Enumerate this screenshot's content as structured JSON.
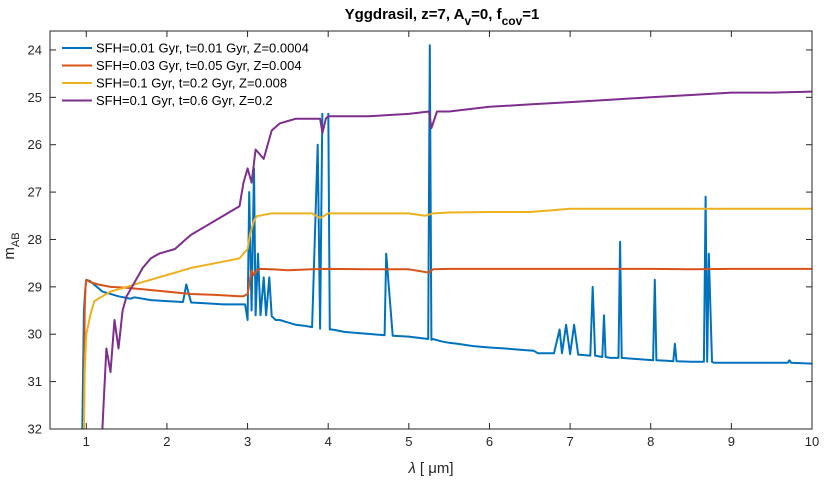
{
  "chart_data": {
    "type": "line",
    "title_parts": {
      "main": "Yggdrasil, z=7, A",
      "sub_v": "v",
      "mid": "=0, f",
      "sub_cov": "cov",
      "end": "=1"
    },
    "xlabel_parts": {
      "lambda": "λ",
      "unit": "[ μm]"
    },
    "ylabel_parts": {
      "main": "m",
      "sub": "AB"
    },
    "xlim": [
      0.55,
      10
    ],
    "ylim": [
      32,
      23.6
    ],
    "y_reversed": true,
    "x_ticks": [
      "1",
      "2",
      "3",
      "4",
      "5",
      "6",
      "7",
      "8",
      "9",
      "10"
    ],
    "y_ticks": [
      "24",
      "25",
      "26",
      "27",
      "28",
      "29",
      "30",
      "31",
      "32"
    ],
    "legend_location": "top-left",
    "series": [
      {
        "name": "SFH=0.01 Gyr, t=0.01 Gyr, Z=0.0004",
        "color": "#0072BD",
        "x": [
          0.95,
          0.96,
          0.97,
          0.99,
          1.0,
          1.05,
          1.2,
          1.4,
          1.55,
          1.6,
          1.8,
          2.0,
          2.2,
          2.24,
          2.3,
          2.5,
          2.7,
          2.9,
          2.97,
          3.0,
          3.02,
          3.05,
          3.08,
          3.1,
          3.13,
          3.16,
          3.2,
          3.23,
          3.27,
          3.3,
          3.35,
          3.4,
          3.5,
          3.6,
          3.7,
          3.8,
          3.87,
          3.9,
          3.93,
          4.0,
          4.02,
          4.05,
          4.2,
          4.4,
          4.7,
          4.72,
          4.8,
          5.0,
          5.24,
          5.26,
          5.28,
          5.3,
          5.4,
          5.5,
          5.6,
          5.8,
          6.0,
          6.2,
          6.4,
          6.55,
          6.6,
          6.8,
          6.87,
          6.9,
          6.95,
          7.0,
          7.05,
          7.1,
          7.25,
          7.28,
          7.31,
          7.4,
          7.42,
          7.44,
          7.5,
          7.6,
          7.62,
          7.64,
          7.8,
          8.03,
          8.05,
          8.07,
          8.2,
          8.28,
          8.3,
          8.32,
          8.5,
          8.66,
          8.68,
          8.7,
          8.72,
          8.76,
          8.78,
          8.8,
          9.0,
          9.3,
          9.5,
          9.7,
          9.72,
          9.74,
          10.0
        ],
        "y": [
          32.0,
          30.8,
          29.5,
          29.0,
          28.85,
          28.88,
          29.1,
          29.2,
          29.25,
          29.22,
          29.28,
          29.3,
          29.32,
          28.95,
          29.33,
          29.35,
          29.37,
          29.37,
          29.37,
          29.7,
          27.0,
          29.5,
          26.5,
          29.6,
          28.3,
          29.6,
          28.8,
          29.6,
          28.8,
          29.62,
          29.7,
          29.7,
          29.75,
          29.8,
          29.82,
          29.85,
          26.0,
          29.88,
          25.0,
          25.0,
          29.9,
          29.9,
          29.95,
          29.98,
          30.02,
          28.3,
          30.03,
          30.05,
          30.1,
          23.9,
          30.12,
          30.1,
          30.15,
          30.18,
          30.2,
          30.25,
          30.28,
          30.3,
          30.33,
          30.35,
          30.4,
          30.4,
          29.9,
          30.4,
          29.8,
          30.42,
          29.8,
          30.43,
          30.45,
          29.0,
          30.45,
          30.48,
          29.6,
          30.48,
          30.5,
          30.5,
          28.05,
          30.5,
          30.52,
          30.55,
          28.85,
          30.55,
          30.56,
          30.57,
          30.2,
          30.57,
          30.58,
          30.58,
          27.1,
          30.58,
          28.3,
          30.58,
          30.6,
          30.6,
          30.6,
          30.6,
          30.6,
          30.6,
          30.55,
          30.6,
          30.62
        ]
      },
      {
        "name": "SFH=0.03 Gyr, t=0.05 Gyr, Z=0.004",
        "color": "#D95319",
        "x": [
          0.97,
          0.98,
          0.99,
          1.0,
          1.05,
          1.15,
          1.3,
          1.5,
          1.7,
          2.0,
          2.3,
          2.6,
          2.9,
          2.95,
          3.0,
          3.05,
          3.08,
          3.12,
          3.15,
          3.3,
          3.5,
          3.8,
          4.0,
          4.5,
          5.0,
          5.25,
          5.3,
          5.5,
          6.0,
          6.5,
          7.0,
          7.5,
          8.0,
          8.5,
          9.0,
          9.5,
          10.0
        ],
        "y": [
          32.0,
          29.5,
          29.0,
          28.85,
          28.9,
          28.95,
          29.0,
          29.02,
          29.05,
          29.1,
          29.15,
          29.17,
          29.2,
          29.2,
          29.15,
          28.65,
          28.75,
          28.65,
          28.62,
          28.63,
          28.65,
          28.63,
          28.62,
          28.63,
          28.63,
          28.7,
          28.63,
          28.62,
          28.62,
          28.62,
          28.62,
          28.62,
          28.62,
          28.63,
          28.62,
          28.62,
          28.62
        ]
      },
      {
        "name": "SFH=0.1 Gyr, t=0.2 Gyr, Z=0.008",
        "color": "#EDB120",
        "x": [
          0.97,
          0.98,
          1.0,
          1.05,
          1.1,
          1.2,
          1.3,
          1.5,
          1.7,
          2.0,
          2.3,
          2.6,
          2.9,
          2.95,
          3.0,
          3.03,
          3.08,
          3.12,
          3.15,
          3.2,
          3.3,
          3.5,
          3.8,
          3.9,
          4.0,
          4.2,
          4.5,
          5.0,
          5.2,
          5.3,
          5.5,
          6.0,
          6.5,
          6.8,
          7.0,
          7.5,
          8.0,
          8.5,
          9.0,
          9.5,
          10.0
        ],
        "y": [
          32.0,
          30.8,
          30.0,
          29.6,
          29.3,
          29.2,
          29.1,
          29.0,
          28.9,
          28.75,
          28.6,
          28.5,
          28.4,
          28.3,
          28.2,
          27.9,
          27.6,
          27.5,
          27.5,
          27.48,
          27.45,
          27.45,
          27.45,
          27.55,
          27.45,
          27.45,
          27.45,
          27.45,
          27.5,
          27.45,
          27.43,
          27.42,
          27.42,
          27.38,
          27.35,
          27.35,
          27.35,
          27.35,
          27.35,
          27.35,
          27.35
        ]
      },
      {
        "name": "SFH=0.1 Gyr, t=0.6 Gyr, Z=0.2",
        "color": "#7E2F8E",
        "x": [
          1.2,
          1.22,
          1.25,
          1.3,
          1.35,
          1.4,
          1.45,
          1.5,
          1.6,
          1.7,
          1.8,
          1.9,
          2.0,
          2.1,
          2.2,
          2.3,
          2.4,
          2.5,
          2.6,
          2.7,
          2.8,
          2.9,
          2.95,
          3.0,
          3.05,
          3.1,
          3.2,
          3.3,
          3.4,
          3.5,
          3.6,
          3.7,
          3.8,
          3.9,
          3.93,
          3.97,
          4.0,
          4.5,
          5.0,
          5.25,
          5.28,
          5.35,
          5.5,
          6.0,
          6.5,
          7.0,
          7.5,
          8.0,
          8.5,
          9.0,
          9.5,
          10.0
        ],
        "y": [
          32.0,
          31.3,
          30.3,
          30.8,
          29.7,
          30.3,
          29.5,
          29.2,
          28.9,
          28.6,
          28.4,
          28.3,
          28.25,
          28.2,
          28.05,
          27.9,
          27.8,
          27.7,
          27.6,
          27.5,
          27.4,
          27.3,
          26.8,
          26.5,
          26.8,
          26.1,
          26.3,
          25.7,
          25.55,
          25.5,
          25.45,
          25.45,
          25.45,
          25.45,
          25.75,
          25.45,
          25.4,
          25.4,
          25.35,
          25.3,
          25.65,
          25.3,
          25.3,
          25.2,
          25.15,
          25.1,
          25.05,
          25.0,
          24.95,
          24.9,
          24.9,
          24.88
        ]
      }
    ]
  }
}
